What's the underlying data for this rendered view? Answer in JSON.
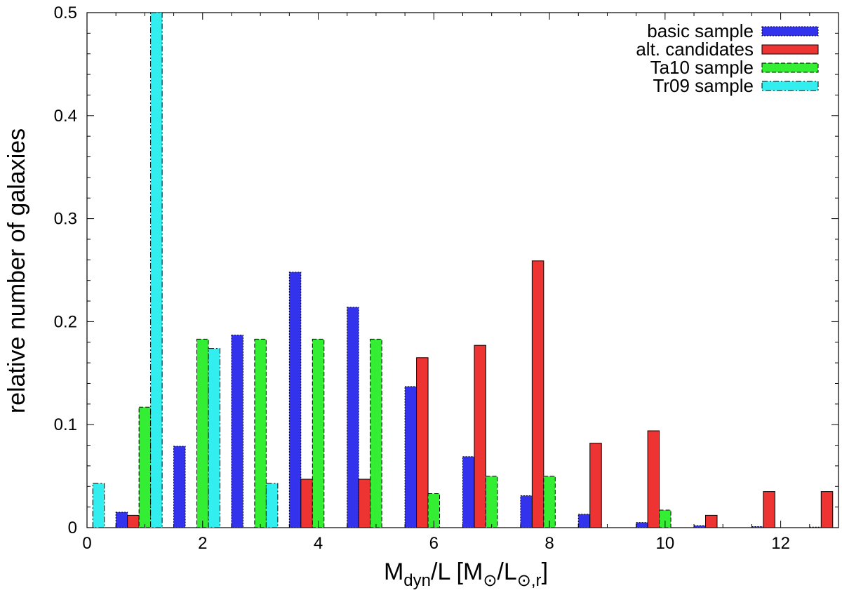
{
  "chart_data": {
    "type": "bar",
    "xlabel": {
      "main": "M",
      "sub1": "dyn",
      "mid": "/L [M",
      "sub2": "⊙",
      "mid2": "/L",
      "sub3": "⊙,r",
      "end": "]"
    },
    "ylabel": "relative number of galaxies",
    "xlim": [
      0,
      13
    ],
    "ylim": [
      0,
      0.5
    ],
    "xticks": [
      0,
      2,
      4,
      6,
      8,
      10,
      12
    ],
    "yticks": [
      0,
      0.1,
      0.2,
      0.3,
      0.4,
      0.5
    ],
    "ytick_labels": [
      "0",
      "0.1",
      "0.2",
      "0.3",
      "0.4",
      "0.5"
    ],
    "bar_width": 0.2,
    "grid": false,
    "legend_position": "top-right",
    "series": [
      {
        "name": "basic sample",
        "color": "#3333ee",
        "border": "dotted",
        "x": [
          0.6,
          1.6,
          2.6,
          3.6,
          4.6,
          5.6,
          6.6,
          7.6,
          8.6,
          9.6,
          10.6,
          11.6,
          12.6
        ],
        "values": [
          0.015,
          0.079,
          0.187,
          0.248,
          0.214,
          0.137,
          0.069,
          0.031,
          0.013,
          0.005,
          0.002,
          0.001,
          0.0005
        ]
      },
      {
        "name": "alt. candidates",
        "color": "#ee3333",
        "border": "solid",
        "x": [
          0.8,
          3.8,
          4.8,
          5.8,
          6.8,
          7.8,
          8.8,
          9.8,
          10.8,
          11.8,
          12.8
        ],
        "values": [
          0.012,
          0.047,
          0.047,
          0.165,
          0.177,
          0.259,
          0.082,
          0.094,
          0.012,
          0.035,
          0.035
        ]
      },
      {
        "name": "Ta10 sample",
        "color": "#33ee33",
        "border": "dashed",
        "x": [
          1.0,
          2.0,
          3.0,
          4.0,
          5.0,
          6.0,
          7.0,
          8.0,
          10.0
        ],
        "values": [
          0.117,
          0.183,
          0.183,
          0.183,
          0.183,
          0.033,
          0.05,
          0.05,
          0.017
        ]
      },
      {
        "name": "Tr09 sample",
        "color": "#33eeee",
        "border": "dashdot",
        "x": [
          0.2,
          1.2,
          2.2,
          3.2
        ],
        "values": [
          0.043,
          0.5,
          0.174,
          0.043
        ]
      }
    ]
  }
}
